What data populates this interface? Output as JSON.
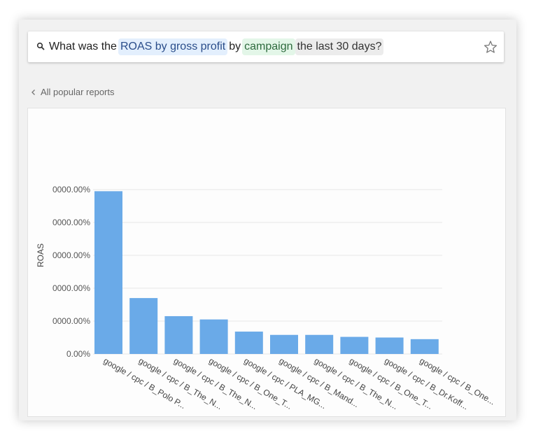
{
  "search": {
    "parts": [
      "What was the",
      "ROAS by gross profit",
      "by",
      "campaign",
      "the last 30 days?"
    ]
  },
  "nav": {
    "back_label": "All popular reports"
  },
  "chart_data": {
    "type": "bar",
    "ylabel": "ROAS",
    "xlabel": "",
    "yticks": [
      "0.00%",
      "0000.00%",
      "0000.00%",
      "0000.00%",
      "0000.00%",
      "0000.00%"
    ],
    "ylim": [
      0,
      5
    ],
    "grid": true,
    "categories": [
      "google / cpc / B_Polo P...",
      "google / cpc / B_The_N...",
      "google / cpc / B_The_N...",
      "google / cpc / B_One_T...",
      "google / cpc / PLA_MG...",
      "google / cpc / B_Mand...",
      "google / cpc / B_The_N...",
      "google / cpc / B_One_T...",
      "google / cpc / B_Dr.Koff...",
      "google / cpc / B_One..."
    ],
    "values": [
      4.95,
      1.7,
      1.15,
      1.05,
      0.68,
      0.58,
      0.58,
      0.52,
      0.5,
      0.45
    ],
    "colors": {
      "bar": "#6aaae8",
      "grid": "#e6e6e6"
    }
  }
}
